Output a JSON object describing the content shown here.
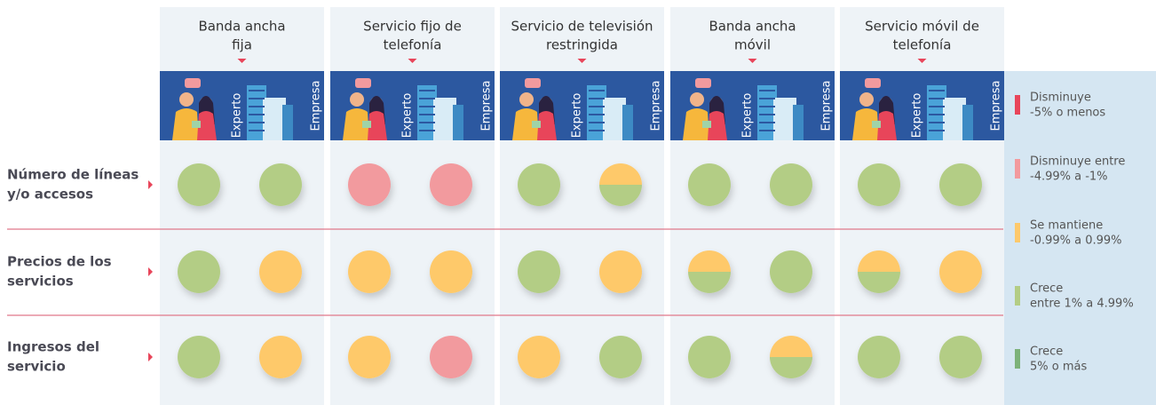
{
  "columns": [
    {
      "lines": [
        "Banda ancha",
        "fija"
      ]
    },
    {
      "lines": [
        "Servicio fijo de",
        "telefonía"
      ]
    },
    {
      "lines": [
        "Servicio de televisión",
        "restringida"
      ]
    },
    {
      "lines": [
        "Banda ancha",
        "móvil"
      ]
    },
    {
      "lines": [
        "Servicio móvil de",
        "telefonía"
      ]
    }
  ],
  "image_labels": [
    "Experto",
    "Empresa"
  ],
  "rows": [
    {
      "lines": [
        "Número de líneas",
        "y/o accesos"
      ],
      "cells": [
        [
          [
            3
          ],
          [
            3
          ]
        ],
        [
          [
            1
          ],
          [
            1
          ]
        ],
        [
          [
            3
          ],
          [
            2,
            3
          ]
        ],
        [
          [
            3
          ],
          [
            3
          ]
        ],
        [
          [
            3
          ],
          [
            3
          ]
        ]
      ]
    },
    {
      "lines": [
        "Precios de los",
        "servicios"
      ],
      "cells": [
        [
          [
            3
          ],
          [
            2
          ]
        ],
        [
          [
            2
          ],
          [
            2
          ]
        ],
        [
          [
            3
          ],
          [
            2
          ]
        ],
        [
          [
            2,
            3
          ],
          [
            3
          ]
        ],
        [
          [
            2,
            3
          ],
          [
            2
          ]
        ]
      ]
    },
    {
      "lines": [
        "Ingresos del",
        "servicio"
      ],
      "cells": [
        [
          [
            3
          ],
          [
            2
          ]
        ],
        [
          [
            2
          ],
          [
            1
          ]
        ],
        [
          [
            2
          ],
          [
            3
          ]
        ],
        [
          [
            3
          ],
          [
            2,
            3
          ]
        ],
        [
          [
            3
          ],
          [
            3
          ]
        ]
      ]
    }
  ],
  "legend": [
    {
      "lines": [
        "Disminuye",
        "-5% o menos"
      ],
      "color": "#e8455a"
    },
    {
      "lines": [
        "Disminuye entre",
        "-4.99% a -1%"
      ],
      "color": "#f29a9e"
    },
    {
      "lines": [
        "Se mantiene",
        "-0.99% a 0.99%"
      ],
      "color": "#fec96b"
    },
    {
      "lines": [
        "Crece",
        "entre 1% a 4.99%"
      ],
      "color": "#b3cd85"
    },
    {
      "lines": [
        "Crece",
        "5% o más"
      ],
      "color": "#7db27a"
    }
  ]
}
